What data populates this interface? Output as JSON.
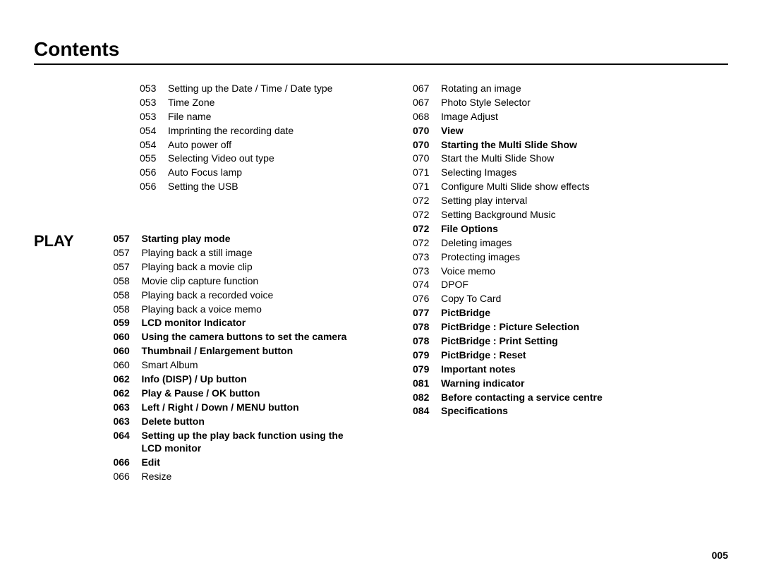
{
  "title": "Contents",
  "pageNumber": "005",
  "sectionLabel": "PLAY",
  "colors": {
    "text": "#000000",
    "background": "#ffffff",
    "rule": "#000000"
  },
  "fonts": {
    "title_size": 28,
    "section_size": 22,
    "body_size": 14,
    "family": "Arial"
  },
  "leftTop": [
    {
      "pg": "053",
      "txt": "Setting up the Date / Time / Date type"
    },
    {
      "pg": "053",
      "txt": "Time Zone"
    },
    {
      "pg": "053",
      "txt": "File name"
    },
    {
      "pg": "054",
      "txt": "Imprinting the recording date"
    },
    {
      "pg": "054",
      "txt": "Auto power off"
    },
    {
      "pg": "055",
      "txt": "Selecting Video out type"
    },
    {
      "pg": "056",
      "txt": "Auto Focus lamp"
    },
    {
      "pg": "056",
      "txt": "Setting the USB"
    }
  ],
  "leftPlay": [
    {
      "pg": "057",
      "txt": "Starting play mode",
      "bold": true
    },
    {
      "pg": "057",
      "txt": "Playing back a still image"
    },
    {
      "pg": "057",
      "txt": "Playing back a movie clip"
    },
    {
      "pg": "058",
      "txt": "Movie clip capture function"
    },
    {
      "pg": "058",
      "txt": "Playing back a recorded voice"
    },
    {
      "pg": "058",
      "txt": "Playing back a voice memo"
    },
    {
      "pg": "059",
      "txt": "LCD monitor Indicator",
      "bold": true
    },
    {
      "pg": "060",
      "txt": "Using the camera buttons to set the camera",
      "bold": true
    },
    {
      "pg": "060",
      "txt": "Thumbnail / Enlargement button",
      "bold": true
    },
    {
      "pg": "060",
      "txt": "Smart Album"
    },
    {
      "pg": "062",
      "txt": "Info (DISP) / Up button",
      "bold": true
    },
    {
      "pg": "062",
      "txt": "Play & Pause / OK button",
      "bold": true
    },
    {
      "pg": "063",
      "txt": "Left / Right / Down / MENU button",
      "bold": true
    },
    {
      "pg": "063",
      "txt": "Delete button",
      "bold": true
    },
    {
      "pg": "064",
      "txt": "Setting up the play back function using the LCD monitor",
      "bold": true
    },
    {
      "pg": "066",
      "txt": "Edit",
      "bold": true
    },
    {
      "pg": "066",
      "txt": "Resize"
    }
  ],
  "right": [
    {
      "pg": "067",
      "txt": "Rotating an image"
    },
    {
      "pg": "067",
      "txt": "Photo Style Selector"
    },
    {
      "pg": "068",
      "txt": "Image Adjust"
    },
    {
      "pg": "070",
      "txt": "View",
      "bold": true
    },
    {
      "pg": "070",
      "txt": "Starting the Multi Slide Show",
      "bold": true
    },
    {
      "pg": "070",
      "txt": "Start the Multi Slide Show"
    },
    {
      "pg": "071",
      "txt": "Selecting Images"
    },
    {
      "pg": "071",
      "txt": "Configure Multi Slide show effects"
    },
    {
      "pg": "072",
      "txt": "Setting play interval"
    },
    {
      "pg": "072",
      "txt": "Setting Background Music"
    },
    {
      "pg": "072",
      "txt": "File Options",
      "bold": true
    },
    {
      "pg": "072",
      "txt": "Deleting images"
    },
    {
      "pg": "073",
      "txt": "Protecting images"
    },
    {
      "pg": "073",
      "txt": "Voice memo"
    },
    {
      "pg": "074",
      "txt": "DPOF"
    },
    {
      "pg": "076",
      "txt": "Copy To Card"
    },
    {
      "pg": "077",
      "txt": "PictBridge",
      "bold": true
    },
    {
      "pg": "078",
      "txt": "PictBridge : Picture Selection",
      "bold": true
    },
    {
      "pg": "078",
      "txt": "PictBridge : Print Setting",
      "bold": true
    },
    {
      "pg": "079",
      "txt": "PictBridge : Reset",
      "bold": true
    },
    {
      "pg": "079",
      "txt": "Important notes",
      "bold": true
    },
    {
      "pg": "081",
      "txt": "Warning indicator",
      "bold": true
    },
    {
      "pg": "082",
      "txt": "Before contacting a service centre",
      "bold": true
    },
    {
      "pg": "084",
      "txt": "Specifications",
      "bold": true
    }
  ]
}
